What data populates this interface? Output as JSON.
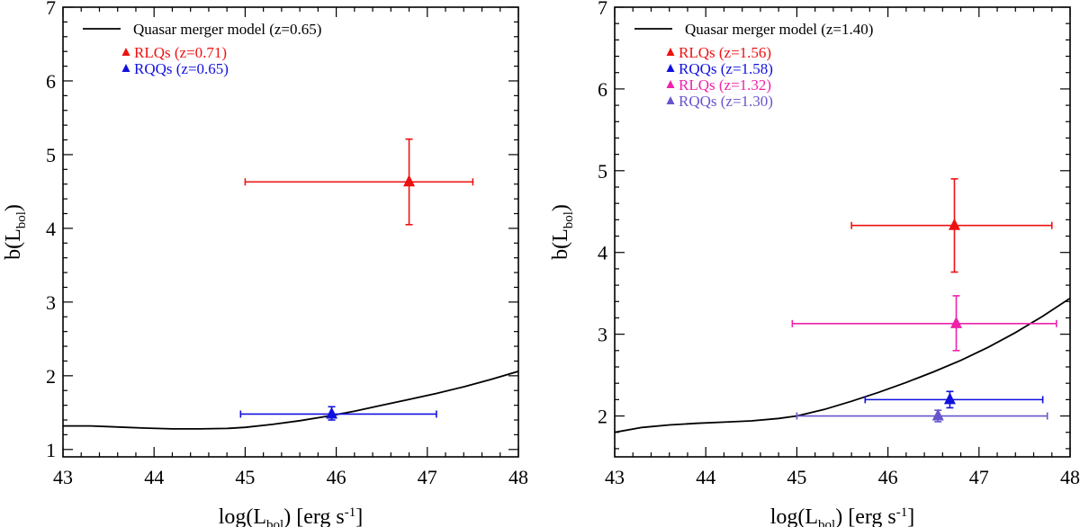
{
  "chart_data": [
    {
      "type": "scatter",
      "xlabel": "log(L_bol) [erg s^-1]",
      "ylabel": "b(L_bol)",
      "xlim": [
        43,
        48
      ],
      "ylim": [
        0.9,
        7
      ],
      "xticks": [
        43,
        44,
        45,
        46,
        47,
        48
      ],
      "yticks": [
        1,
        2,
        3,
        4,
        5,
        6,
        7
      ],
      "line": {
        "label": "Quasar merger model (z=0.65)",
        "color": "#000000",
        "x": [
          43.0,
          43.3,
          43.6,
          43.9,
          44.2,
          44.5,
          44.8,
          45.0,
          45.3,
          45.6,
          45.9,
          46.2,
          46.5,
          46.8,
          47.1,
          47.4,
          47.7,
          48.0
        ],
        "y": [
          1.32,
          1.32,
          1.305,
          1.29,
          1.28,
          1.28,
          1.285,
          1.3,
          1.34,
          1.39,
          1.45,
          1.52,
          1.6,
          1.68,
          1.76,
          1.85,
          1.95,
          2.06
        ]
      },
      "series": [
        {
          "name": "RLQs (z=0.71)",
          "color": "#ee1111",
          "x": 46.8,
          "y": 4.63,
          "xerr": [
            45.0,
            47.5
          ],
          "yerr": [
            4.05,
            5.21
          ]
        },
        {
          "name": "RQQs (z=0.65)",
          "color": "#1111dd",
          "x": 45.95,
          "y": 1.48,
          "xerr": [
            44.95,
            47.1
          ],
          "yerr": [
            1.4,
            1.58
          ]
        }
      ]
    },
    {
      "type": "scatter",
      "xlabel": "log(L_bol) [erg s^-1]",
      "ylabel": "b(L_bol)",
      "xlim": [
        43,
        48
      ],
      "ylim": [
        1.5,
        7
      ],
      "xticks": [
        43,
        44,
        45,
        46,
        47,
        48
      ],
      "yticks": [
        2,
        3,
        4,
        5,
        6,
        7
      ],
      "line": {
        "label": "Quasar merger model (z=1.40)",
        "color": "#000000",
        "x": [
          43.0,
          43.3,
          43.6,
          43.9,
          44.2,
          44.5,
          44.8,
          45.0,
          45.3,
          45.6,
          45.9,
          46.2,
          46.5,
          46.8,
          47.1,
          47.4,
          47.7,
          48.0
        ],
        "y": [
          1.8,
          1.86,
          1.89,
          1.91,
          1.925,
          1.94,
          1.97,
          2.0,
          2.08,
          2.18,
          2.29,
          2.41,
          2.54,
          2.68,
          2.84,
          3.02,
          3.22,
          3.44
        ]
      },
      "series": [
        {
          "name": "RLQs (z=1.56)",
          "color": "#ee1111",
          "x": 46.73,
          "y": 4.33,
          "xerr": [
            45.6,
            47.8
          ],
          "yerr": [
            3.76,
            4.9
          ]
        },
        {
          "name": "RQQs (z=1.58)",
          "color": "#1111dd",
          "x": 46.68,
          "y": 2.2,
          "xerr": [
            45.75,
            47.7
          ],
          "yerr": [
            2.1,
            2.3
          ]
        },
        {
          "name": "RLQs (z=1.32)",
          "color": "#ee22aa",
          "x": 46.75,
          "y": 3.13,
          "xerr": [
            44.95,
            47.85
          ],
          "yerr": [
            2.8,
            3.47
          ]
        },
        {
          "name": "RQQs (z=1.30)",
          "color": "#6655cc",
          "x": 46.55,
          "y": 2.0,
          "xerr": [
            45.0,
            47.75
          ],
          "yerr": [
            1.93,
            2.07
          ]
        }
      ]
    }
  ]
}
